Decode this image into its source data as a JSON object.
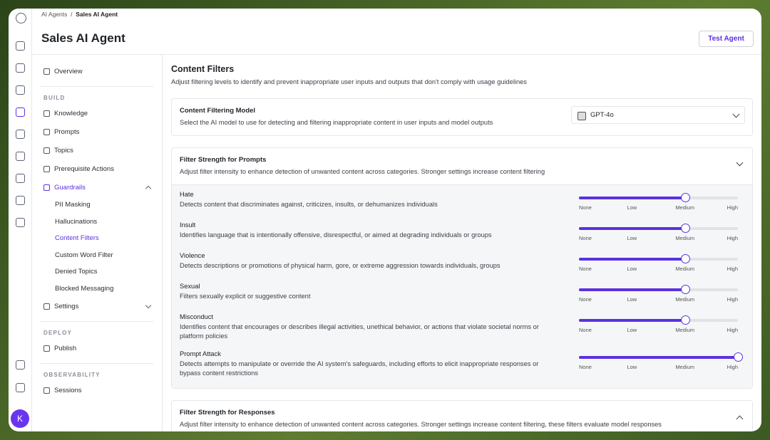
{
  "breadcrumb": [
    "AI Agents",
    "Sales AI Agent"
  ],
  "header": {
    "title": "Sales AI Agent",
    "button": "Test Agent"
  },
  "avatar": "K",
  "sidebar": {
    "top": "Overview",
    "groups": [
      {
        "title": "BUILD",
        "items": [
          {
            "label": "Knowledge"
          },
          {
            "label": "Prompts"
          },
          {
            "label": "Topics"
          },
          {
            "label": "Prerequisite Actions"
          },
          {
            "label": "Guardrails",
            "active": true,
            "open": true
          },
          {
            "label": "PII Masking",
            "sub": true
          },
          {
            "label": "Hallucinations",
            "sub": true
          },
          {
            "label": "Content Filters",
            "sub": true,
            "active": true
          },
          {
            "label": "Custom Word Filter",
            "sub": true
          },
          {
            "label": "Denied Topics",
            "sub": true
          },
          {
            "label": "Blocked Messaging",
            "sub": true
          },
          {
            "label": "Settings",
            "open": false
          }
        ]
      },
      {
        "title": "DEPLOY",
        "items": [
          {
            "label": "Publish"
          }
        ]
      },
      {
        "title": "OBSERVABILITY",
        "items": [
          {
            "label": "Sessions"
          }
        ]
      }
    ]
  },
  "content": {
    "title": "Content Filters",
    "description": "Adjust filtering levels to identify and prevent inappropriate user inputs and outputs that don't comply with usage guidelines",
    "model": {
      "title": "Content Filtering Model",
      "description": "Select the AI model to use for detecting and filtering inappropriate content in user inputs and model outputs",
      "selected": "GPT-4o"
    },
    "prompts": {
      "title": "Filter Strength for Prompts",
      "description": "Adjust filter intensity to enhance detection of unwanted content across categories. Stronger settings increase content filtering",
      "open": true,
      "scale": [
        "None",
        "Low",
        "Medium",
        "High"
      ],
      "filters": [
        {
          "name": "Hate",
          "description": "Detects content that discriminates against, criticizes, insults, or dehumanizes individuals",
          "level": 2
        },
        {
          "name": "Insult",
          "description": "Identifies language that is intentionally offensive, disrespectful, or aimed at degrading individuals or groups",
          "level": 2
        },
        {
          "name": "Violence",
          "description": "Detects descriptions or promotions of physical harm, gore, or extreme aggression towards individuals, groups",
          "level": 2
        },
        {
          "name": "Sexual",
          "description": "Filters sexually explicit or suggestive content",
          "level": 2
        },
        {
          "name": "Misconduct",
          "description": "Identifies content that encourages or describes illegal activities, unethical behavior, or actions that violate societal norms or platform policies",
          "level": 2
        },
        {
          "name": "Prompt Attack",
          "description": "Detects attempts to manipulate or override the AI system's safeguards, including efforts to elicit inappropriate responses or bypass content restrictions",
          "level": 3
        }
      ]
    },
    "responses": {
      "title": "Filter Strength for Responses",
      "description": "Adjust filter intensity to enhance detection of unwanted content across categories. Stronger settings increase content filtering, these filters evaluate model responses",
      "open": false
    }
  }
}
